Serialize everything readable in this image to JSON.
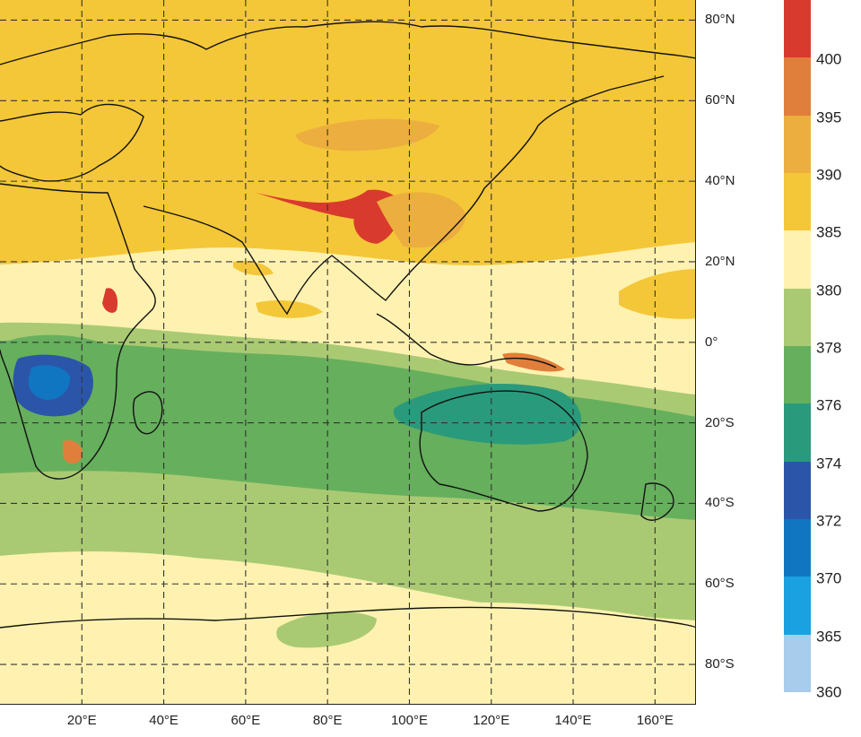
{
  "map": {
    "lat_labels": [
      {
        "text": "80°N",
        "lat": 80
      },
      {
        "text": "60°N",
        "lat": 60
      },
      {
        "text": "40°N",
        "lat": 40
      },
      {
        "text": "20°N",
        "lat": 20
      },
      {
        "text": "0°",
        "lat": 0
      },
      {
        "text": "20°S",
        "lat": -20
      },
      {
        "text": "40°S",
        "lat": -40
      },
      {
        "text": "60°S",
        "lat": -60
      },
      {
        "text": "80°S",
        "lat": -80
      }
    ],
    "lon_labels": [
      {
        "text": "20°E",
        "lon": 20
      },
      {
        "text": "40°E",
        "lon": 40
      },
      {
        "text": "60°E",
        "lon": 60
      },
      {
        "text": "80°E",
        "lon": 80
      },
      {
        "text": "100°E",
        "lon": 100
      },
      {
        "text": "120°E",
        "lon": 120
      },
      {
        "text": "140°E",
        "lon": 140
      },
      {
        "text": "160°E",
        "lon": 160
      }
    ],
    "lon_range": [
      0,
      170
    ],
    "lat_range": [
      -90,
      85
    ],
    "grid": "dashed every 20°"
  },
  "colorbar": {
    "levels": [
      {
        "label": "",
        "color": "#d93a2e"
      },
      {
        "label": "400",
        "color": "#e07f3c"
      },
      {
        "label": "395",
        "color": "#ecae3e"
      },
      {
        "label": "390",
        "color": "#f4c738"
      },
      {
        "label": "385",
        "color": "#fff2b0"
      },
      {
        "label": "380",
        "color": "#a9ca73"
      },
      {
        "label": "378",
        "color": "#66af5d"
      },
      {
        "label": "376",
        "color": "#2a9a7c"
      },
      {
        "label": "374",
        "color": "#2b55a8"
      },
      {
        "label": "372",
        "color": "#1176c2"
      },
      {
        "label": "370",
        "color": "#1aa1e2"
      },
      {
        "label": "365",
        "color": "#a7ccec"
      }
    ],
    "bottom_label": "360"
  }
}
